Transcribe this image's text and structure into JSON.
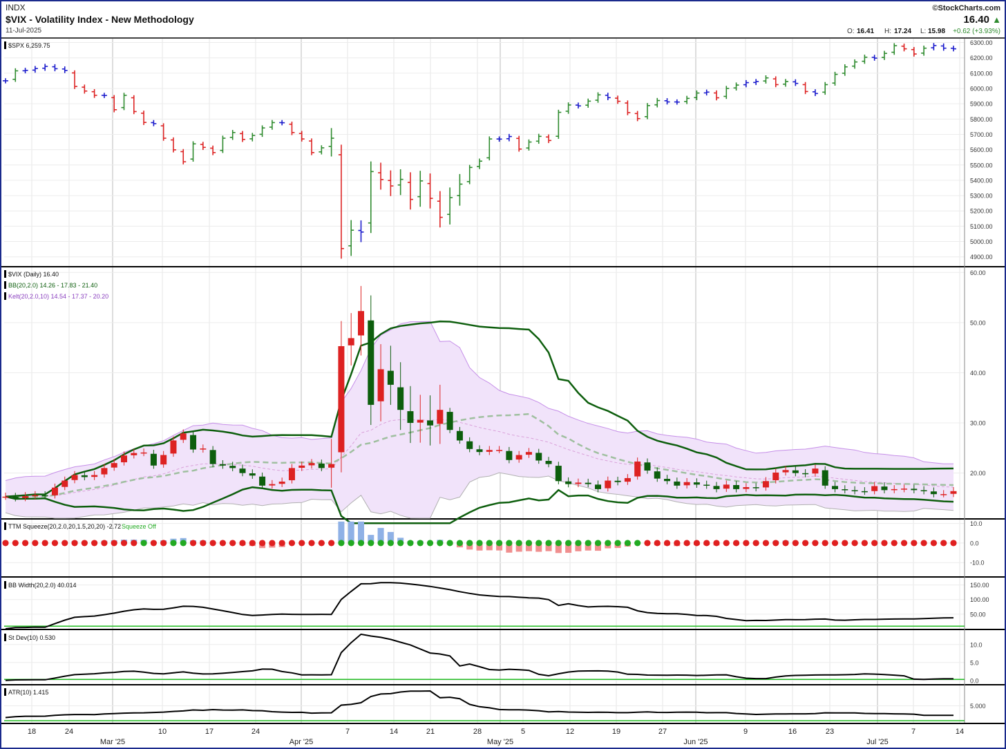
{
  "header": {
    "exchange": "INDX",
    "title": "$VIX - Volatility Index - New Methodology",
    "date": "11-Jul-2025",
    "brand": "©StockCharts.com",
    "last": "16.40",
    "up_arrow": "▲",
    "ohlc": {
      "o_label": "O:",
      "o": "16.41",
      "h_label": "H:",
      "h": "17.24",
      "l_label": "L:",
      "l": "15.98",
      "chg": "+0.62 (+3.93%)"
    }
  },
  "colors": {
    "up": "#2e8b2e",
    "down": "#dd2222",
    "neutral": "#1a1acc",
    "bb": "#0d5e0d",
    "kelt_fill": "#f1e3fa",
    "kelt_line": "#c58ee8",
    "baseline": "#22bb22",
    "hist_pos": "#8fb1e6",
    "hist_neg": "#f08f8f",
    "dot_on": "#e02020",
    "dot_off": "#22aa22"
  },
  "x_axis": {
    "day_labels": [
      "18",
      "24",
      "10",
      "17",
      "24",
      "7",
      "14",
      "21",
      "28",
      "5",
      "12",
      "19",
      "27",
      "9",
      "16",
      "23",
      "7",
      "14"
    ],
    "month_labels": [
      "Mar '25",
      "Apr '25",
      "May '25",
      "Jun '25",
      "Jul '25"
    ]
  },
  "chart_data": [
    {
      "type": "ohlc",
      "panel": "spx",
      "label": "$SPX 6,259.75",
      "yticks": [
        "6300.00",
        "6200.00",
        "6100.00",
        "6000.00",
        "5900.00",
        "5800.00",
        "5700.00",
        "5600.00",
        "5500.00",
        "5400.00",
        "5300.00",
        "5200.00",
        "5100.00",
        "5000.00",
        "4900.00"
      ],
      "ylim": [
        4840,
        6325
      ],
      "closes": [
        6050,
        6115,
        6118,
        6130,
        6144,
        6129,
        6117,
        6013,
        5983,
        5955,
        5954,
        5861,
        5955,
        5849,
        5778,
        5770,
        5675,
        5599,
        5521,
        5638,
        5615,
        5581,
        5675,
        5712,
        5667,
        5693,
        5742,
        5777,
        5776,
        5712,
        5670,
        5581,
        5612,
        5675,
        4954,
        5074,
        5062,
        5457,
        5405,
        5363,
        5406,
        5275,
        5396,
        5282,
        5158,
        5287,
        5375,
        5484,
        5525,
        5670,
        5669,
        5686,
        5604,
        5650,
        5687,
        5660,
        5844,
        5892,
        5886,
        5917,
        5958,
        5940,
        5916,
        5842,
        5803,
        5888,
        5921,
        5912,
        5911,
        5935,
        5970,
        5976,
        5939,
        6000,
        6022,
        6038,
        6045,
        6069,
        6025,
        6045,
        6033,
        5980,
        5967,
        6025,
        6092,
        6141,
        6173,
        6204,
        6198,
        6229,
        6279,
        6259,
        6225,
        6263,
        6280,
        6263,
        6259
      ]
    },
    {
      "type": "candlestick",
      "panel": "vix",
      "label": "$VIX (Daily) 16.40",
      "bb_label": "BB(20,2.0) 14.26 - 17.83 - 21.40",
      "kelt_label": "Kelt(20,2.0,10) 14.54 - 17.37 - 20.20",
      "yticks": [
        "60.00",
        "50.00",
        "40.00",
        "30.00",
        "20.00"
      ],
      "ylim": [
        11,
        61
      ],
      "closes": [
        15.3,
        15.0,
        15.4,
        15.6,
        15.4,
        17.1,
        18.5,
        19.6,
        19.2,
        19.6,
        21.0,
        22.0,
        23.5,
        24.0,
        24.1,
        21.5,
        23.6,
        26.5,
        27.9,
        24.7,
        24.9,
        21.8,
        21.5,
        21.0,
        20.0,
        19.5,
        17.5,
        17.8,
        18.3,
        21.0,
        21.5,
        22.0,
        21.0,
        21.8,
        45.3,
        46.9,
        52.3,
        33.6,
        40.7,
        37.6,
        32.6,
        30.0,
        30.6,
        29.5,
        32.6,
        28.6,
        26.5,
        24.8,
        24.2,
        24.6,
        24.6,
        22.6,
        23.6,
        24.2,
        22.5,
        21.8,
        18.4,
        17.8,
        18.1,
        17.8,
        16.8,
        18.5,
        18.2,
        19.0,
        22.3,
        20.5,
        18.9,
        18.4,
        17.5,
        18.2,
        17.7,
        17.5,
        16.8,
        17.7,
        16.8,
        17.2,
        17.0,
        18.4,
        20.1,
        20.6,
        20.0,
        19.8,
        20.9,
        17.5,
        16.8,
        16.6,
        16.4,
        16.3,
        17.4,
        16.6,
        16.8,
        16.9,
        16.6,
        16.4,
        15.8,
        15.8,
        16.4
      ]
    },
    {
      "type": "bar",
      "panel": "ttm",
      "label": "TTM Squeeze(20,2.0,20,1.5,20,20) -2.72",
      "status": "Squeeze Off",
      "yticks": [
        "10.0",
        "0.0",
        "-10.0"
      ],
      "ylim": [
        -17,
        12
      ]
    },
    {
      "type": "line",
      "panel": "bbw",
      "label": "BB Width(20,2.0) 40.014",
      "yticks": [
        "150.00",
        "100.00",
        "50.00"
      ],
      "ylim": [
        0,
        175
      ]
    },
    {
      "type": "line",
      "panel": "stdev",
      "label": "St Dev(10) 0.530",
      "yticks": [
        "10.0",
        "5.0",
        "0.0"
      ],
      "ylim": [
        -1,
        14
      ]
    },
    {
      "type": "line",
      "panel": "atr",
      "label": "ATR(10) 1.415",
      "yticks": [
        "5.000"
      ],
      "ylim": [
        0,
        11
      ]
    }
  ]
}
